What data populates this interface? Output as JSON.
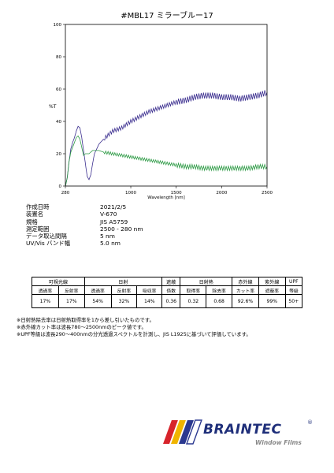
{
  "title": "#MBL17  ミラーブルー17",
  "chart_data": {
    "type": "line",
    "ylabel": "%T",
    "xlabel": "Wavelength [nm]",
    "xlim": [
      280,
      2500
    ],
    "ylim": [
      0,
      100
    ],
    "xticks": [
      280,
      1000,
      1500,
      2000,
      2500
    ],
    "yticks": [
      0,
      20,
      40,
      60,
      80,
      100
    ],
    "series": [
      {
        "color": "#3b2e8f",
        "x": [
          280,
          300,
          320,
          340,
          360,
          380,
          400,
          420,
          440,
          460,
          480,
          500,
          520,
          540,
          560,
          580,
          600,
          650,
          700,
          800,
          900,
          1000,
          1100,
          1200,
          1300,
          1400,
          1500,
          1600,
          1700,
          1800,
          1900,
          2000,
          2100,
          2200,
          2300,
          2400,
          2500
        ],
        "y": [
          0,
          5,
          15,
          23,
          27,
          30,
          34,
          37,
          36,
          30,
          22,
          14,
          6,
          4,
          7,
          14,
          20,
          26,
          29,
          34,
          36,
          40,
          43,
          46,
          48,
          50,
          52,
          53,
          55,
          56,
          56,
          55,
          55,
          54,
          55,
          56,
          58
        ]
      },
      {
        "color": "#2d9a45",
        "x": [
          280,
          300,
          320,
          340,
          360,
          380,
          400,
          420,
          440,
          460,
          480,
          500,
          520,
          540,
          560,
          580,
          600,
          650,
          700,
          800,
          900,
          1000,
          1100,
          1200,
          1300,
          1400,
          1500,
          1600,
          1700,
          1800,
          1900,
          2000,
          2100,
          2200,
          2300,
          2400,
          2500
        ],
        "y": [
          0,
          5,
          15,
          21,
          24,
          27,
          30,
          31,
          29,
          24,
          19,
          20,
          20,
          20,
          21,
          22,
          22,
          22,
          21,
          20,
          19,
          18,
          17,
          16,
          15,
          14,
          13,
          12,
          12,
          11,
          11,
          11,
          11,
          11,
          11,
          12,
          12
        ]
      }
    ]
  },
  "info": [
    {
      "key": "作成日時",
      "value": "2021/2/5"
    },
    {
      "key": "装置名",
      "value": "V-670"
    },
    {
      "key": "規格",
      "value": "JIS A5759"
    },
    {
      "key": "測定範囲",
      "value": "2500 - 280 nm"
    },
    {
      "key": "データ取込間隔",
      "value": "5 nm"
    },
    {
      "key": "UV/Vis バンド幅",
      "value": "5.0 nm"
    }
  ],
  "table": {
    "groups": [
      {
        "label": "可視光線",
        "span": 2
      },
      {
        "label": "日射",
        "span": 3
      },
      {
        "label": "遮蔽",
        "span": 1
      },
      {
        "label": "日射熱",
        "span": 2
      },
      {
        "label": "赤外線",
        "span": 1
      },
      {
        "label": "紫外線",
        "span": 1
      },
      {
        "label": "UPF",
        "span": 1
      }
    ],
    "subheaders": [
      "透過率",
      "反射率",
      "透過率",
      "反射率",
      "吸収率",
      "係数",
      "取得率",
      "除去率",
      "カット率",
      "遮蔽率",
      "等級"
    ],
    "values": [
      "17%",
      "17%",
      "54%",
      "32%",
      "14%",
      "0.36",
      "0.32",
      "0.68",
      "92.6%",
      "99%",
      "50+"
    ]
  },
  "notes": [
    "※日射熱除去率は日射熱取得率を1から差し引いたものです。",
    "※赤外線カット率は波長780～2500nmのピーク値です。",
    "※UPF等級は波長290～400nmの分光透過スペクトルを計測し、JIS L1925に基づいて評価しています。"
  ],
  "logo": {
    "brand": "BRAINTEC",
    "registered": "®",
    "tagline": "Window Films"
  }
}
